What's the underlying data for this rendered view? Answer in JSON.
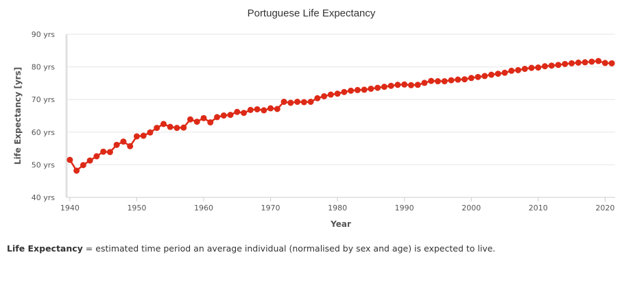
{
  "colors": {
    "series": "#dd2a17",
    "grid": "#e6e6e6",
    "axis": "#cccccc",
    "text": "#555555"
  },
  "footnote": {
    "term": "Life Expectancy",
    "definition": " = estimated time period an average individual (normalised by sex and age) is expected to live."
  },
  "chart_data": {
    "type": "line",
    "title": "Portuguese Life Expectancy",
    "xlabel": "Year",
    "ylabel": "Life Expectancy [yrs]",
    "xlim": [
      1939.5,
      2021.5
    ],
    "ylim": [
      40,
      90
    ],
    "x_ticks": [
      1940,
      1950,
      1960,
      1970,
      1980,
      1990,
      2000,
      2010,
      2020
    ],
    "y_ticks": [
      40,
      50,
      60,
      70,
      80,
      90
    ],
    "y_tick_suffix": " yrs",
    "grid": true,
    "x": [
      1940,
      1941,
      1942,
      1943,
      1944,
      1945,
      1946,
      1947,
      1948,
      1949,
      1950,
      1951,
      1952,
      1953,
      1954,
      1955,
      1956,
      1957,
      1958,
      1959,
      1960,
      1961,
      1962,
      1963,
      1964,
      1965,
      1966,
      1967,
      1968,
      1969,
      1970,
      1971,
      1972,
      1973,
      1974,
      1975,
      1976,
      1977,
      1978,
      1979,
      1980,
      1981,
      1982,
      1983,
      1984,
      1985,
      1986,
      1987,
      1988,
      1989,
      1990,
      1991,
      1992,
      1993,
      1994,
      1995,
      1996,
      1997,
      1998,
      1999,
      2000,
      2001,
      2002,
      2003,
      2004,
      2005,
      2006,
      2007,
      2008,
      2009,
      2010,
      2011,
      2012,
      2013,
      2014,
      2015,
      2016,
      2017,
      2018,
      2019,
      2020,
      2021
    ],
    "series": [
      {
        "values": [
          51.5,
          48.2,
          49.9,
          51.3,
          52.6,
          54.0,
          53.9,
          56.1,
          57.1,
          55.7,
          58.7,
          58.9,
          59.9,
          61.3,
          62.5,
          61.6,
          61.3,
          61.4,
          63.9,
          63.2,
          64.3,
          63.0,
          64.6,
          65.1,
          65.3,
          66.2,
          65.9,
          66.8,
          67.0,
          66.7,
          67.3,
          67.1,
          69.3,
          69.0,
          69.3,
          69.2,
          69.3,
          70.4,
          71.0,
          71.5,
          71.8,
          72.3,
          72.7,
          72.9,
          73.0,
          73.3,
          73.6,
          73.9,
          74.2,
          74.5,
          74.6,
          74.4,
          74.5,
          75.1,
          75.7,
          75.6,
          75.6,
          75.9,
          76.1,
          76.2,
          76.6,
          76.9,
          77.2,
          77.6,
          77.9,
          78.2,
          78.8,
          79.0,
          79.4,
          79.7,
          79.8,
          80.2,
          80.4,
          80.6,
          80.9,
          81.1,
          81.3,
          81.4,
          81.6,
          81.8,
          81.2,
          81.1
        ]
      }
    ]
  }
}
